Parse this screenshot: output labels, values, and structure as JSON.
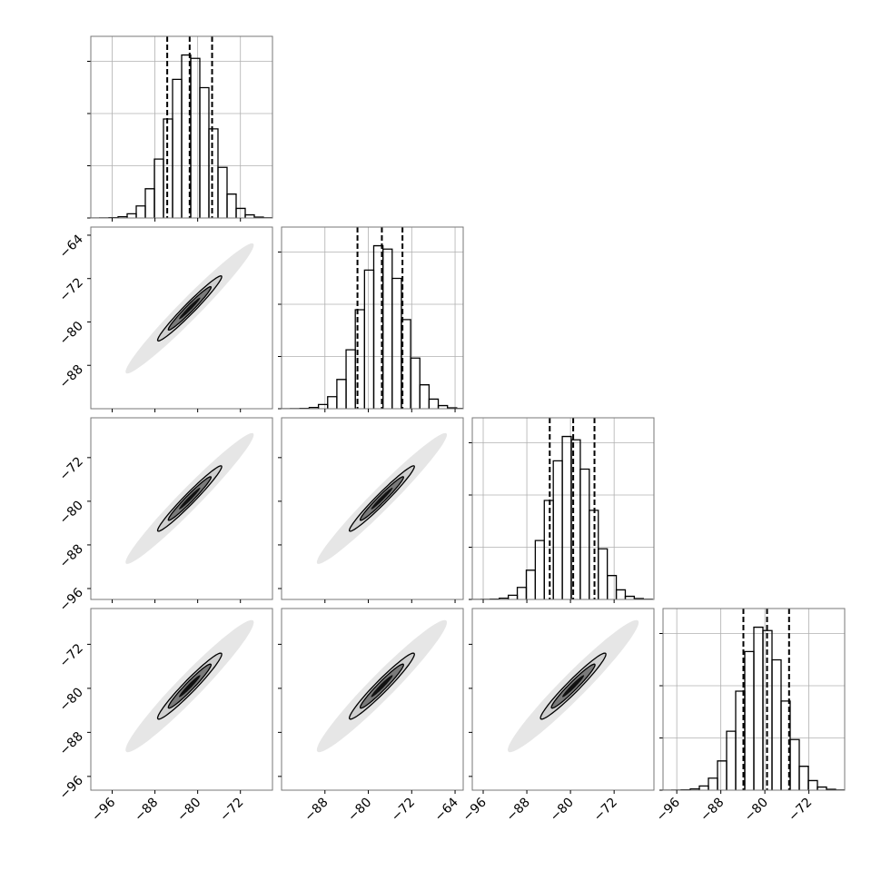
{
  "chart_data": {
    "type": "corner",
    "params": [
      {
        "lim": [
          -100,
          -66
        ],
        "ticks": [
          {
            "value": -96,
            "label": "−96"
          },
          {
            "value": -88,
            "label": "−88"
          },
          {
            "value": -80,
            "label": "−80"
          },
          {
            "value": -72,
            "label": "−72"
          }
        ],
        "bins": [
          -100,
          -98.3,
          -96.6,
          -94.9,
          -93.2,
          -91.5,
          -89.8,
          -88.1,
          -86.4,
          -84.7,
          -83,
          -81.3,
          -79.6,
          -77.9,
          -76.2,
          -74.5,
          -72.8,
          -71.1,
          -69.4,
          -67.7,
          -66
        ],
        "counts": [
          0,
          1,
          3,
          12,
          40,
          115,
          280,
          564,
          948,
          1327,
          1560,
          1528,
          1248,
          853,
          485,
          229,
          92,
          30,
          8,
          2
        ],
        "quantiles": [
          -85.7,
          -81.5,
          -77.3
        ],
        "mean": -81.5,
        "std": 4
      },
      {
        "lim": [
          -96,
          -62.5
        ],
        "ticks": [
          {
            "value": -88,
            "label": "−88"
          },
          {
            "value": -80,
            "label": "−80"
          },
          {
            "value": -72,
            "label": "−72"
          },
          {
            "value": -64,
            "label": "−64"
          }
        ],
        "bins": [
          -96,
          -94.3,
          -92.6,
          -90.9,
          -89.2,
          -87.5,
          -85.8,
          -84.1,
          -82.4,
          -80.7,
          -79,
          -77.3,
          -75.6,
          -73.9,
          -72.2,
          -70.5,
          -68.8,
          -67.1,
          -65.4,
          -63.7,
          -62
        ],
        "counts": [
          0,
          1,
          3,
          12,
          40,
          115,
          280,
          564,
          948,
          1327,
          1560,
          1528,
          1248,
          853,
          485,
          229,
          92,
          30,
          8,
          2
        ],
        "quantiles": [
          -82,
          -77.5,
          -73.7
        ],
        "mean": -77.5,
        "std": 4
      },
      {
        "lim": [
          -98,
          -64.7
        ],
        "ticks": [
          {
            "value": -96,
            "label": "−96"
          },
          {
            "value": -88,
            "label": "−88"
          },
          {
            "value": -80,
            "label": "−80"
          },
          {
            "value": -72,
            "label": "−72"
          }
        ],
        "bins": [
          -98,
          -96.35,
          -94.7,
          -93.05,
          -91.4,
          -89.75,
          -88.1,
          -86.45,
          -84.8,
          -83.15,
          -81.5,
          -79.85,
          -78.2,
          -76.55,
          -74.9,
          -73.25,
          -71.6,
          -69.95,
          -68.3,
          -66.65,
          -65
        ],
        "counts": [
          0,
          1,
          3,
          12,
          40,
          115,
          280,
          564,
          948,
          1327,
          1560,
          1528,
          1248,
          853,
          485,
          229,
          92,
          30,
          8,
          2
        ],
        "quantiles": [
          -83.8,
          -79.5,
          -75.6
        ],
        "mean": -79.5,
        "std": 4
      },
      {
        "lim": [
          -98.5,
          -65.5
        ],
        "ticks": [
          {
            "value": -96,
            "label": "−96"
          },
          {
            "value": -88,
            "label": "−88"
          },
          {
            "value": -80,
            "label": "−80"
          },
          {
            "value": -72,
            "label": "−72"
          }
        ],
        "bins": [
          -98.5,
          -96.85,
          -95.2,
          -93.55,
          -91.9,
          -90.25,
          -88.6,
          -86.95,
          -85.3,
          -83.65,
          -82,
          -80.35,
          -78.7,
          -77.05,
          -75.4,
          -73.75,
          -72.1,
          -70.45,
          -68.8,
          -67.15,
          -65.5
        ],
        "counts": [
          0,
          1,
          3,
          12,
          40,
          115,
          280,
          564,
          948,
          1327,
          1560,
          1528,
          1248,
          853,
          485,
          229,
          92,
          30,
          8,
          2
        ],
        "quantiles": [
          -83.9,
          -79.6,
          -75.6
        ],
        "mean": -79.6,
        "std": 4
      }
    ],
    "hist_ylim": [
      0,
      1739
    ],
    "hist_yticks": [
      0,
      500,
      1000,
      1500
    ],
    "grid": true,
    "pairs": [
      {
        "x": 0,
        "y": 1,
        "corr": 0.974
      },
      {
        "x": 0,
        "y": 2,
        "corr": 0.974
      },
      {
        "x": 1,
        "y": 2,
        "corr": 0.974
      },
      {
        "x": 0,
        "y": 3,
        "corr": 0.965
      },
      {
        "x": 1,
        "y": 3,
        "corr": 0.965
      },
      {
        "x": 2,
        "y": 3,
        "corr": 0.965
      }
    ],
    "levels": [
      3,
      1.5,
      1,
      0.5
    ],
    "level_colors": [
      "#e6e6e6",
      "#cfcfcf",
      "#7a7a7a",
      "#111111"
    ]
  }
}
